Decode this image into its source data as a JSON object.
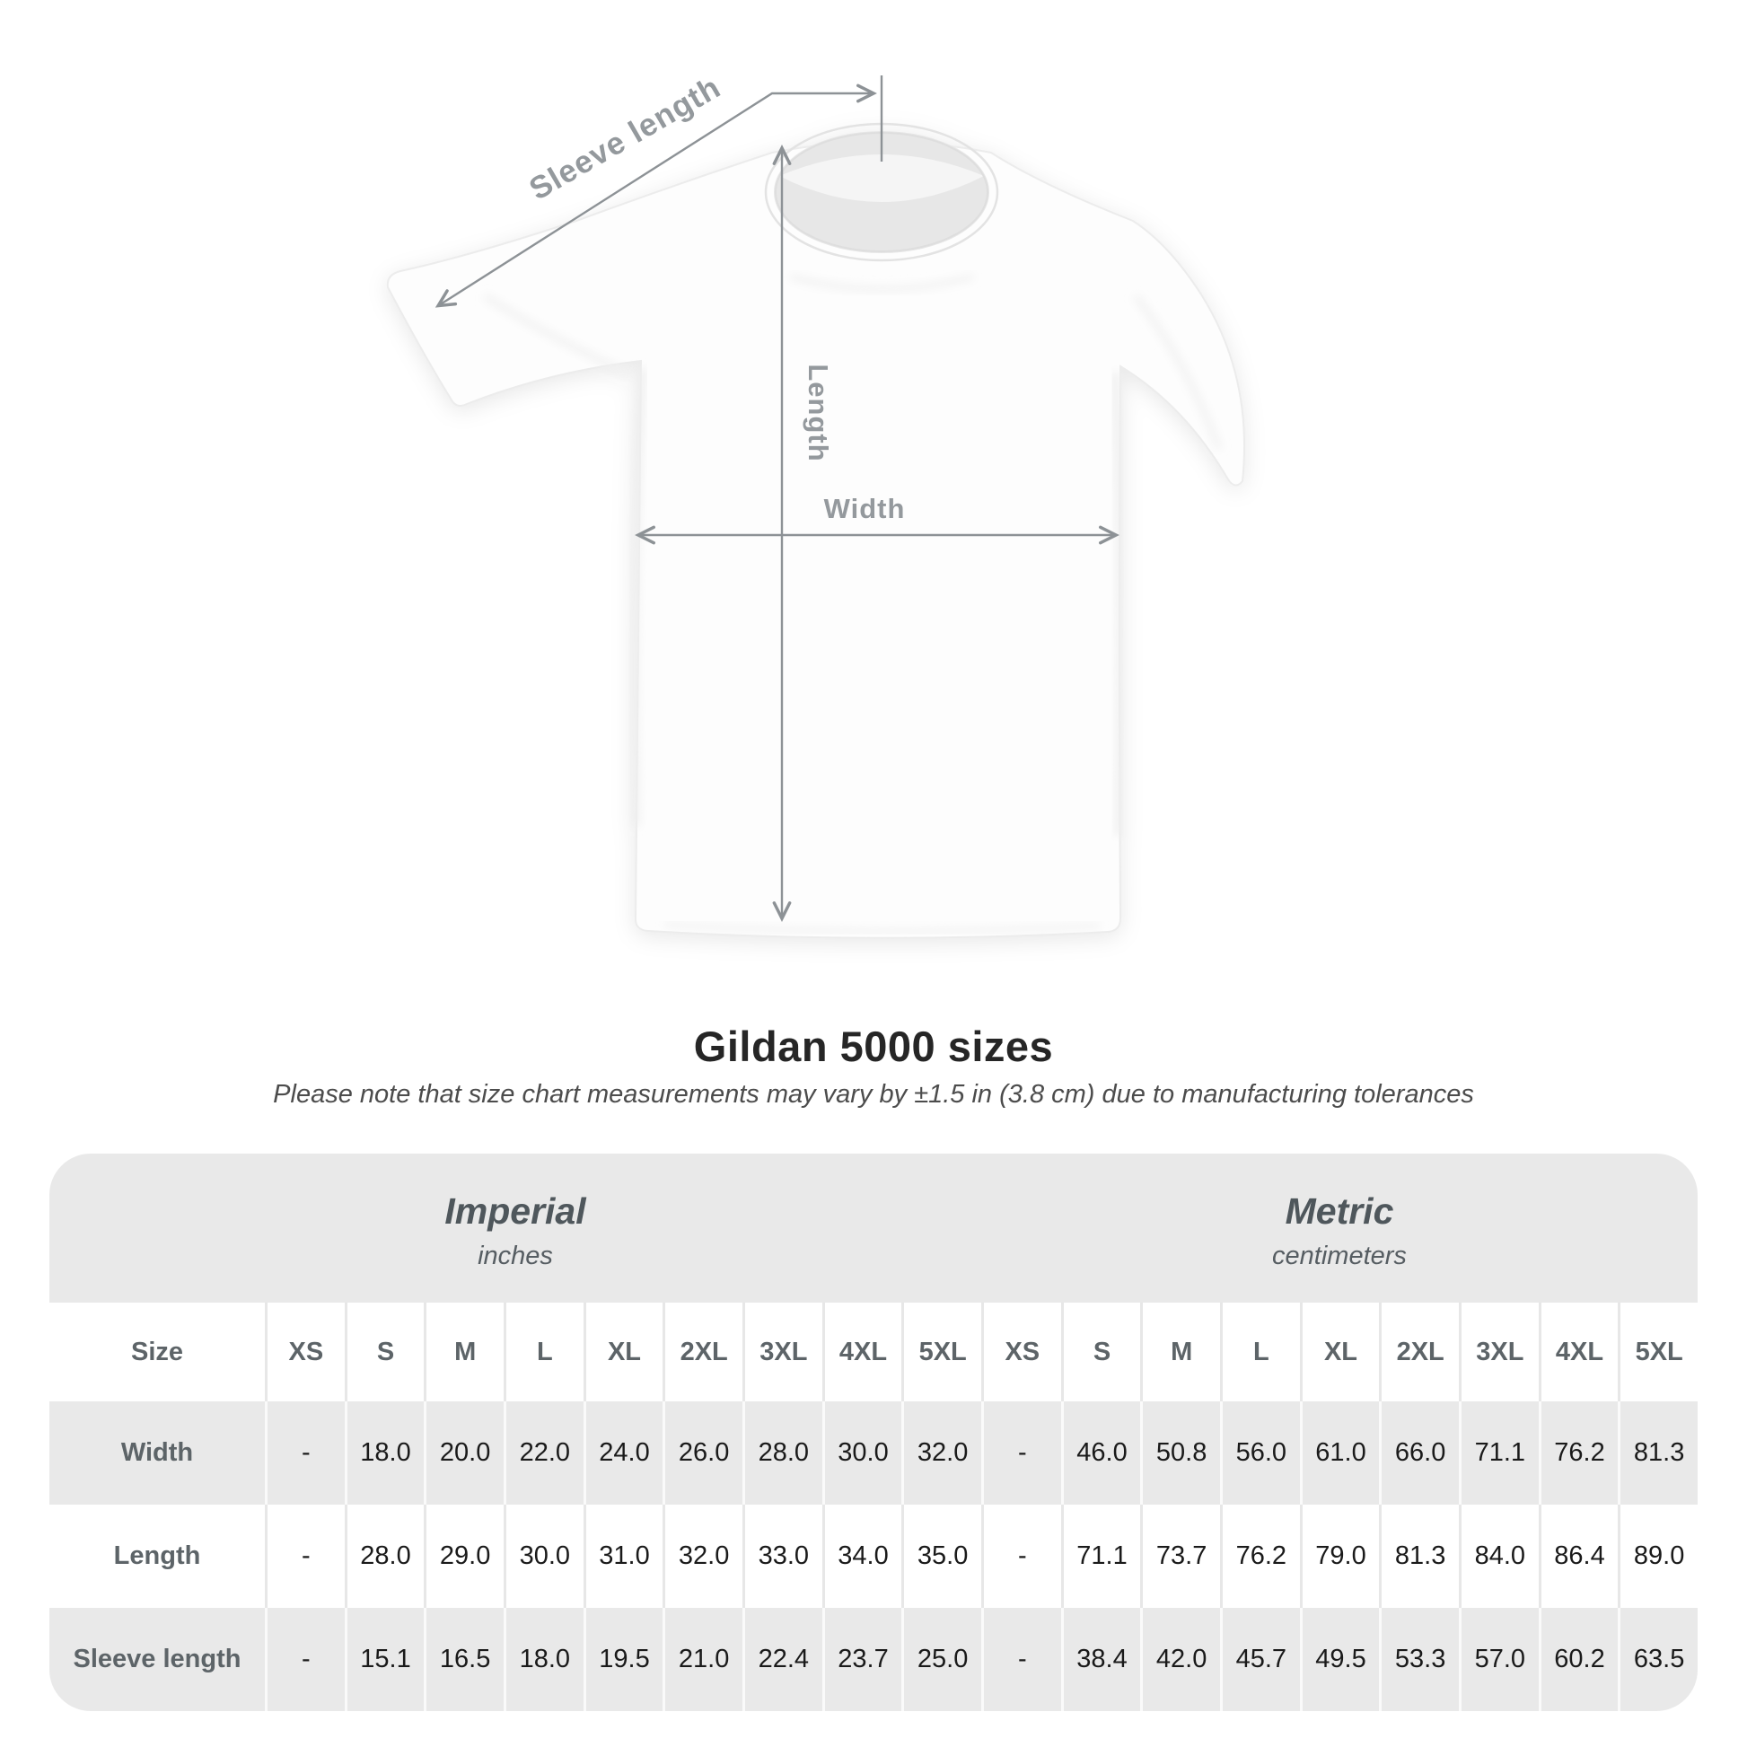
{
  "title": "Gildan 5000 sizes",
  "subtitle": "Please note that size chart measurements may vary by ±1.5 in (3.8 cm) due to manufacturing tolerances",
  "diagram": {
    "labels": {
      "sleeve_length": "Sleeve length",
      "length": "Length",
      "width": "Width"
    },
    "annotation_color": "#8d9296",
    "label_color": "#94999d",
    "shirt_color": "#fdfdfd"
  },
  "table": {
    "background_color": "#e9e9e9",
    "section_headers": [
      {
        "label": "Imperial",
        "sublabel": "inches"
      },
      {
        "label": "Metric",
        "sublabel": "centimeters"
      }
    ],
    "size_header": {
      "label": "Size",
      "imperial": [
        "XS",
        "S",
        "M",
        "L",
        "XL",
        "2XL",
        "3XL",
        "4XL",
        "5XL"
      ],
      "metric": [
        "XS",
        "S",
        "M",
        "L",
        "XL",
        "2XL",
        "3XL",
        "4XL",
        "5XL"
      ]
    },
    "rows": [
      {
        "label": "Width",
        "imperial": [
          "-",
          "18.0",
          "20.0",
          "22.0",
          "24.0",
          "26.0",
          "28.0",
          "30.0",
          "32.0"
        ],
        "metric": [
          "-",
          "46.0",
          "50.8",
          "56.0",
          "61.0",
          "66.0",
          "71.1",
          "76.2",
          "81.3"
        ]
      },
      {
        "label": "Length",
        "imperial": [
          "-",
          "28.0",
          "29.0",
          "30.0",
          "31.0",
          "32.0",
          "33.0",
          "34.0",
          "35.0"
        ],
        "metric": [
          "-",
          "71.1",
          "73.7",
          "76.2",
          "79.0",
          "81.3",
          "84.0",
          "86.4",
          "89.0"
        ]
      },
      {
        "label": "Sleeve length",
        "imperial": [
          "-",
          "15.1",
          "16.5",
          "18.0",
          "19.5",
          "21.0",
          "22.4",
          "23.7",
          "25.0"
        ],
        "metric": [
          "-",
          "38.4",
          "42.0",
          "45.7",
          "49.5",
          "53.3",
          "57.0",
          "60.2",
          "63.5"
        ]
      }
    ]
  },
  "chart_data": {
    "type": "table",
    "title": "Gildan 5000 sizes",
    "note": "Size chart measurements may vary by ±1.5 in (3.8 cm) due to manufacturing tolerances",
    "sections": [
      {
        "name": "Imperial",
        "unit": "inches",
        "sizes": [
          "XS",
          "S",
          "M",
          "L",
          "XL",
          "2XL",
          "3XL",
          "4XL",
          "5XL"
        ],
        "width": [
          null,
          18.0,
          20.0,
          22.0,
          24.0,
          26.0,
          28.0,
          30.0,
          32.0
        ],
        "length": [
          null,
          28.0,
          29.0,
          30.0,
          31.0,
          32.0,
          33.0,
          34.0,
          35.0
        ],
        "sleeve_length": [
          null,
          15.1,
          16.5,
          18.0,
          19.5,
          21.0,
          22.4,
          23.7,
          25.0
        ]
      },
      {
        "name": "Metric",
        "unit": "centimeters",
        "sizes": [
          "XS",
          "S",
          "M",
          "L",
          "XL",
          "2XL",
          "3XL",
          "4XL",
          "5XL"
        ],
        "width": [
          null,
          46.0,
          50.8,
          56.0,
          61.0,
          66.0,
          71.1,
          76.2,
          81.3
        ],
        "length": [
          null,
          71.1,
          73.7,
          76.2,
          79.0,
          81.3,
          84.0,
          86.4,
          89.0
        ],
        "sleeve_length": [
          null,
          38.4,
          42.0,
          45.7,
          49.5,
          53.3,
          57.0,
          60.2,
          63.5
        ]
      }
    ]
  }
}
